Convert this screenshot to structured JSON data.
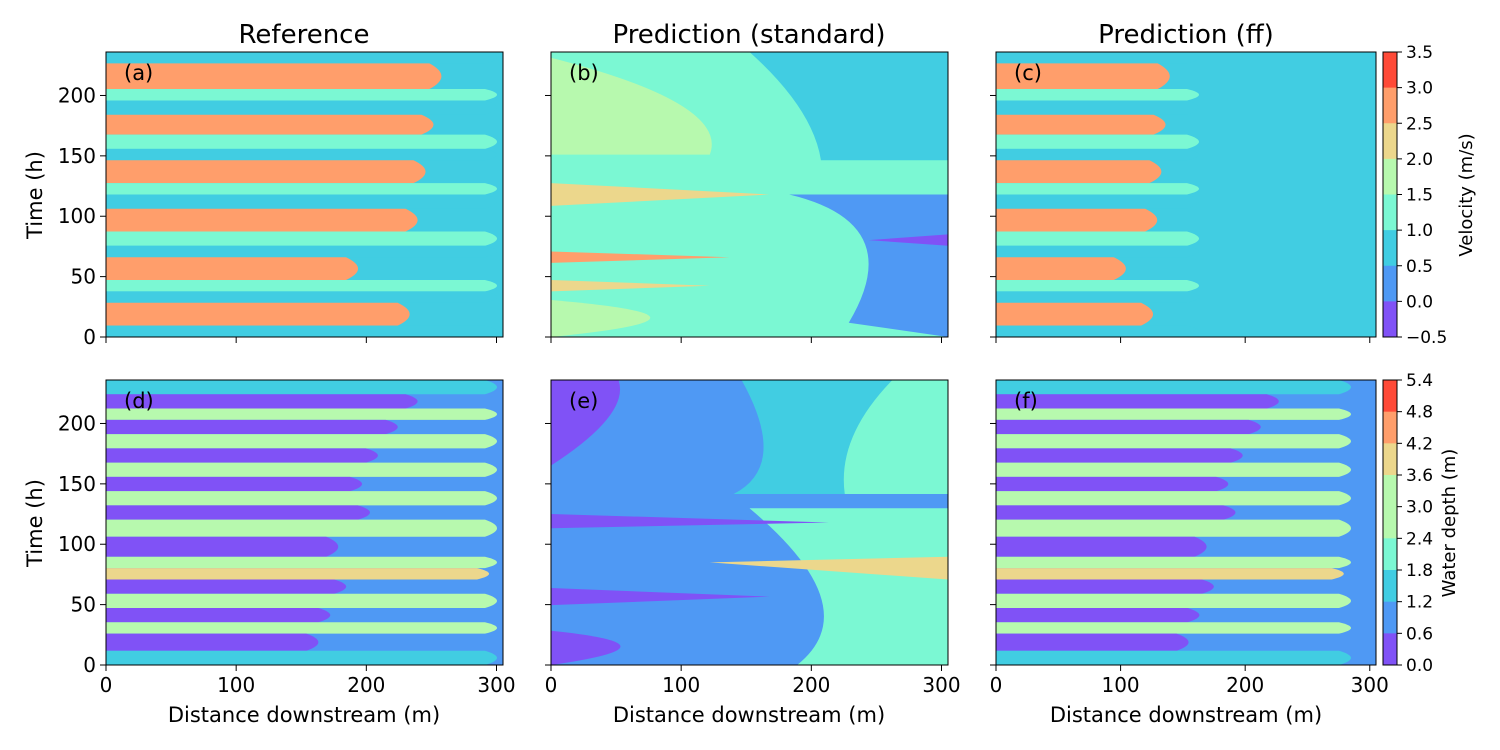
{
  "figure": {
    "columns": [
      "Reference",
      "Prediction (standard)",
      "Prediction (ff)"
    ],
    "xlabel": "Distance downstream (m)",
    "ylabel": "Time (h)"
  },
  "colormap": [
    "#8052f6",
    "#4f99f4",
    "#41cde2",
    "#7bf8d3",
    "#b7f9ae",
    "#ecd78c",
    "#ff9e6b",
    "#ff4a37"
  ],
  "chart_data": [
    {
      "type": "heatmap",
      "panel": "(a)",
      "title": "Reference",
      "quantity": "velocity",
      "pattern": "ref",
      "xlim": [
        0,
        305
      ],
      "ylim": [
        0,
        236
      ],
      "xticks": [
        0,
        100,
        200,
        300
      ],
      "yticks": [
        0,
        50,
        100,
        150,
        200
      ],
      "xlabel": "",
      "ylabel": "Time (h)"
    },
    {
      "type": "heatmap",
      "panel": "(b)",
      "title": "Prediction (standard)",
      "quantity": "velocity",
      "pattern": "standard",
      "xlim": [
        0,
        305
      ],
      "ylim": [
        0,
        236
      ],
      "xticks": [
        0,
        100,
        200,
        300
      ],
      "yticks": [
        0,
        50,
        100,
        150,
        200
      ],
      "xlabel": "",
      "ylabel": ""
    },
    {
      "type": "heatmap",
      "panel": "(c)",
      "title": "Prediction (ff)",
      "quantity": "velocity",
      "pattern": "ff",
      "xlim": [
        0,
        305
      ],
      "ylim": [
        0,
        236
      ],
      "xticks": [
        0,
        100,
        200,
        300
      ],
      "yticks": [
        0,
        50,
        100,
        150,
        200
      ],
      "xlabel": "",
      "ylabel": ""
    },
    {
      "type": "heatmap",
      "panel": "(d)",
      "title": "",
      "quantity": "water depth",
      "pattern": "ref",
      "xlim": [
        0,
        305
      ],
      "ylim": [
        0,
        236
      ],
      "xticks": [
        0,
        100,
        200,
        300
      ],
      "yticks": [
        0,
        50,
        100,
        150,
        200
      ],
      "xlabel": "Distance downstream (m)",
      "ylabel": "Time (h)"
    },
    {
      "type": "heatmap",
      "panel": "(e)",
      "title": "",
      "quantity": "water depth",
      "pattern": "standard",
      "xlim": [
        0,
        305
      ],
      "ylim": [
        0,
        236
      ],
      "xticks": [
        0,
        100,
        200,
        300
      ],
      "yticks": [
        0,
        50,
        100,
        150,
        200
      ],
      "xlabel": "Distance downstream (m)",
      "ylabel": ""
    },
    {
      "type": "heatmap",
      "panel": "(f)",
      "title": "",
      "quantity": "water depth",
      "pattern": "ff",
      "xlim": [
        0,
        305
      ],
      "ylim": [
        0,
        236
      ],
      "xticks": [
        0,
        100,
        200,
        300
      ],
      "yticks": [
        0,
        50,
        100,
        150,
        200
      ],
      "xlabel": "Distance downstream (m)",
      "ylabel": ""
    }
  ],
  "colorbars": [
    {
      "label": "Velocity (m/s)",
      "range": [
        -0.5,
        3.5
      ],
      "ticks": [
        "3.5",
        "3.0",
        "2.5",
        "2.0",
        "1.5",
        "1.0",
        "0.5",
        "0.0",
        "−0.5"
      ]
    },
    {
      "label": "Water depth (m)",
      "range": [
        0.0,
        5.4
      ],
      "ticks": [
        "5.4",
        "4.8",
        "4.2",
        "3.6",
        "3.0",
        "2.4",
        "1.8",
        "1.2",
        "0.6",
        "0.0"
      ]
    }
  ]
}
